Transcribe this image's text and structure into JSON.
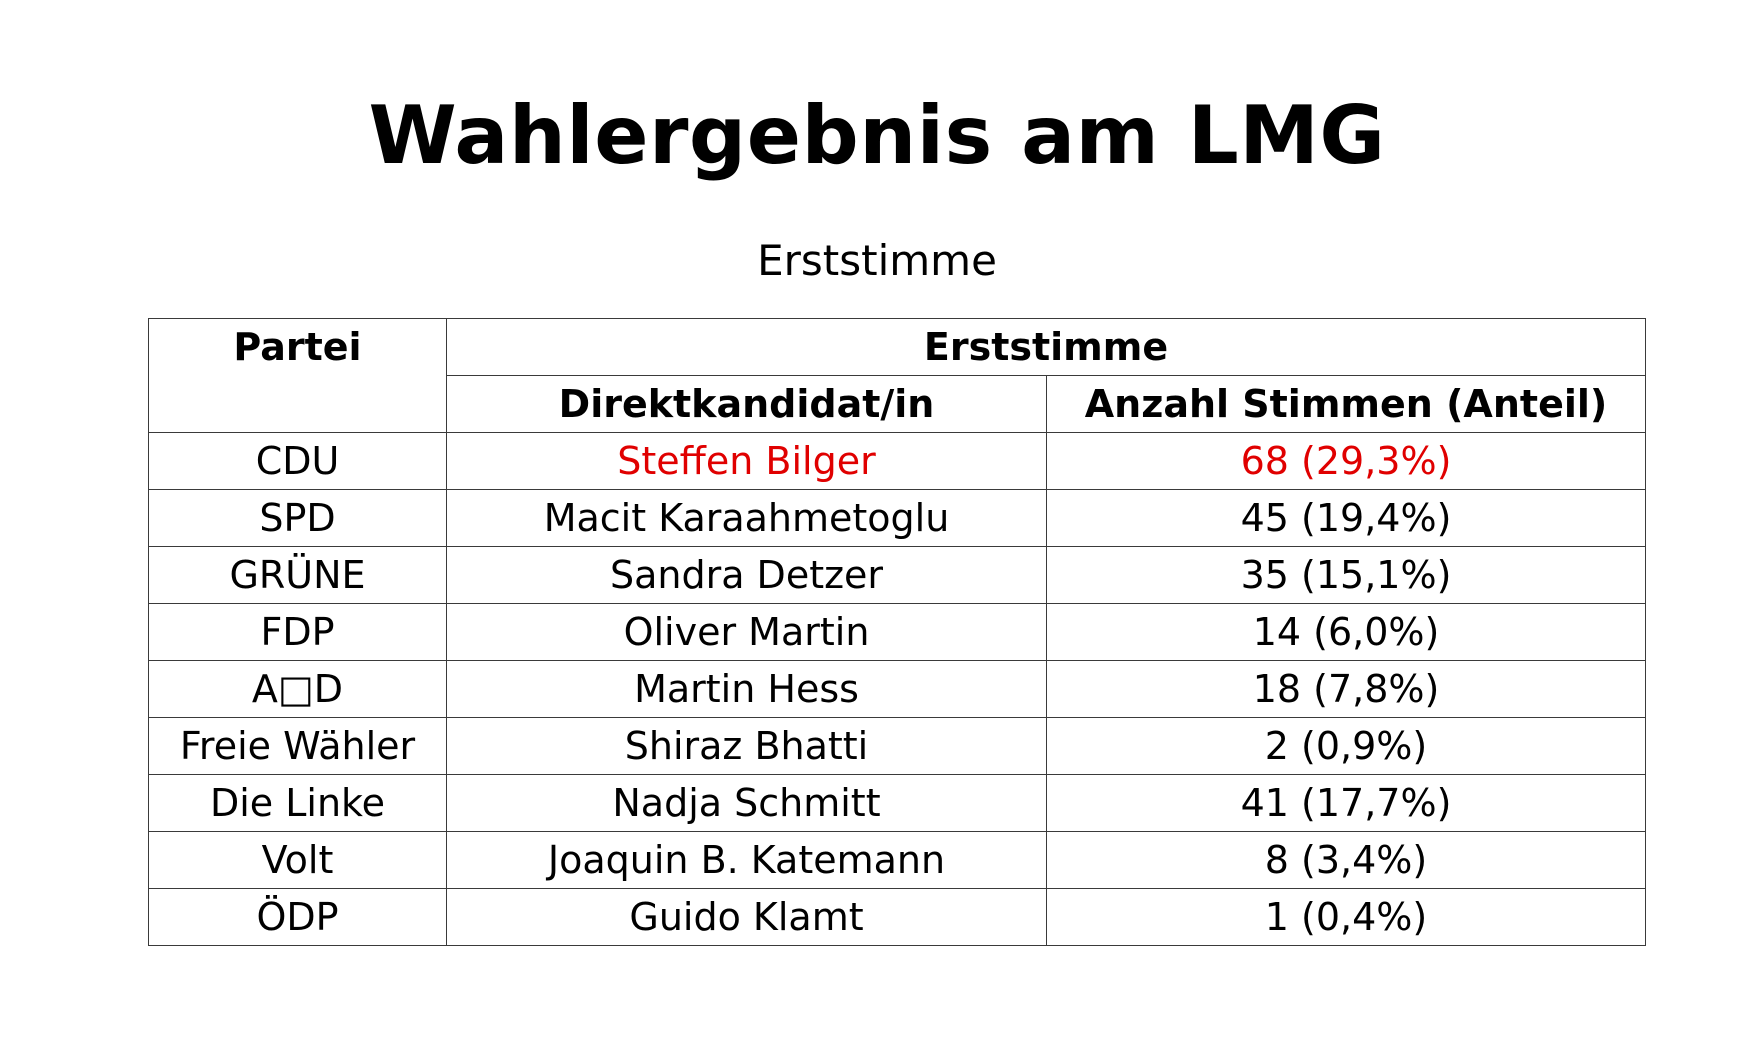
{
  "title": "Wahlergebnis am LMG",
  "subtitle": "Erststimme",
  "table": {
    "headers": {
      "party": "Partei",
      "group": "Erststimme",
      "candidate": "Direktkandidat/in",
      "votes": "Anzahl Stimmen (Anteil)"
    },
    "highlight_color": "#e00000",
    "rows": [
      {
        "party": "CDU",
        "candidate": "Steffen Bilger",
        "votes": "68 (29,3%)",
        "highlight": true
      },
      {
        "party": "SPD",
        "candidate": "Macit Karaahmetoglu",
        "votes": "45 (19,4%)",
        "highlight": false
      },
      {
        "party": "GRÜNE",
        "candidate": "Sandra Detzer",
        "votes": "35 (15,1%)",
        "highlight": false
      },
      {
        "party": "FDP",
        "candidate": "Oliver Martin",
        "votes": "14 (6,0%)",
        "highlight": false
      },
      {
        "party": "A□D",
        "candidate": "Martin Hess",
        "votes": "18 (7,8%)",
        "highlight": false
      },
      {
        "party": "Freie Wähler",
        "candidate": "Shiraz Bhatti",
        "votes": "2 (0,9%)",
        "highlight": false
      },
      {
        "party": "Die Linke",
        "candidate": "Nadja Schmitt",
        "votes": "41 (17,7%)",
        "highlight": false
      },
      {
        "party": "Volt",
        "candidate": "Joaquin B. Katemann",
        "votes": "8 (3,4%)",
        "highlight": false
      },
      {
        "party": "ÖDP",
        "candidate": "Guido Klamt",
        "votes": "1 (0,4%)",
        "highlight": false
      }
    ]
  }
}
